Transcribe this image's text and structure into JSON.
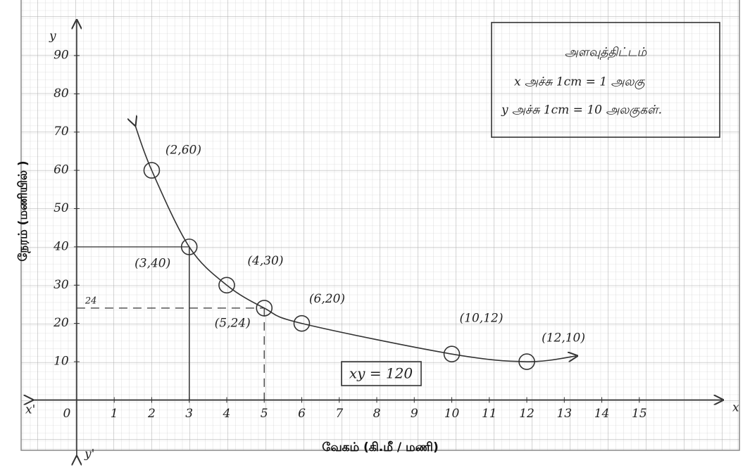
{
  "chart_data": {
    "type": "line",
    "x_label": "வேகம்  (கி.மீ  /  மணி)",
    "y_label": "நேரம்   (மணியில் )",
    "x_axis_name": "x",
    "x_axis_neg_name": "x'",
    "y_axis_name": "y",
    "y_axis_neg_name": "y'",
    "x": [
      2,
      3,
      4,
      5,
      6,
      10,
      12
    ],
    "values": [
      60,
      40,
      30,
      24,
      20,
      12,
      10
    ],
    "value_labels": [
      "(2,60)",
      "(3,40)",
      "(4,30)",
      "(5,24)",
      "(6,20)",
      "(10,12)",
      "(12,10)"
    ],
    "color": "#333333",
    "xlim": [
      -1.2,
      17.2
    ],
    "ylim": [
      -15,
      99
    ],
    "xticks": [
      0,
      1,
      2,
      3,
      4,
      5,
      6,
      7,
      8,
      9,
      10,
      11,
      12,
      13,
      14,
      15
    ],
    "yticks": [
      10,
      20,
      30,
      40,
      50,
      60,
      70,
      80,
      90
    ],
    "guides": [
      {
        "x": 3,
        "y": 40,
        "style": "solid",
        "labeled": false
      },
      {
        "x": 5,
        "y": 24,
        "style": "dashed",
        "labeled": true
      }
    ],
    "equation": "xy = 120",
    "scale_box": {
      "title": "அளவுத்திட்டம்",
      "lines": [
        "x அச்சு 1cm = 1 அலகு",
        "y அச்சு 1cm = 10 அலகுகள்."
      ]
    },
    "grid": true
  }
}
